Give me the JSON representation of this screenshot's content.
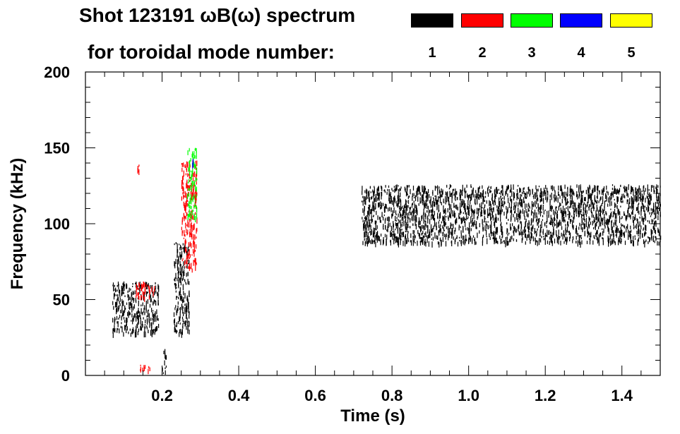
{
  "header": {
    "title_line1": "Shot 123191 ωB(ω) spectrum",
    "title_line2": "for toroidal mode number:"
  },
  "legend": [
    {
      "label": "1",
      "color": "#000000"
    },
    {
      "label": "2",
      "color": "#ff0000"
    },
    {
      "label": "3",
      "color": "#00ff00"
    },
    {
      "label": "4",
      "color": "#0000ff"
    },
    {
      "label": "5",
      "color": "#ffff00"
    }
  ],
  "chart_data": {
    "type": "heatmap",
    "title": "Shot 123191 ωB(ω) spectrum",
    "xlabel": "Time (s)",
    "ylabel": "Frequency (kHz)",
    "xlim": [
      0.0,
      1.5
    ],
    "ylim": [
      0,
      200
    ],
    "x_ticks": [
      "0.2",
      "0.4",
      "0.6",
      "0.8",
      "1.0",
      "1.2",
      "1.4"
    ],
    "x_tick_values": [
      0.2,
      0.4,
      0.6,
      0.8,
      1.0,
      1.2,
      1.4
    ],
    "y_ticks": [
      "0",
      "50",
      "100",
      "150",
      "200"
    ],
    "y_tick_values": [
      0,
      50,
      100,
      150,
      200
    ],
    "grid": false,
    "series": [
      {
        "name": "1",
        "color": "#000000",
        "regions": [
          {
            "t0": 0.07,
            "t1": 0.19,
            "f0": 28,
            "f1": 62
          },
          {
            "t0": 0.23,
            "t1": 0.27,
            "f0": 28,
            "f1": 88
          },
          {
            "t0": 0.2,
            "t1": 0.21,
            "f0": 2,
            "f1": 18
          },
          {
            "t0": 0.72,
            "t1": 1.5,
            "f0": 88,
            "f1": 126
          }
        ]
      },
      {
        "name": "2",
        "color": "#ff0000",
        "regions": [
          {
            "t0": 0.13,
            "t1": 0.18,
            "f0": 52,
            "f1": 62
          },
          {
            "t0": 0.135,
            "t1": 0.14,
            "f0": 133,
            "f1": 139
          },
          {
            "t0": 0.14,
            "t1": 0.17,
            "f0": 3,
            "f1": 8
          },
          {
            "t0": 0.25,
            "t1": 0.29,
            "f0": 70,
            "f1": 142
          }
        ]
      },
      {
        "name": "3",
        "color": "#00ff00",
        "regions": [
          {
            "t0": 0.265,
            "t1": 0.29,
            "f0": 105,
            "f1": 150
          }
        ]
      },
      {
        "name": "4",
        "color": "#0000ff",
        "regions": [
          {
            "t0": 0.278,
            "t1": 0.283,
            "f0": 138,
            "f1": 143
          }
        ]
      },
      {
        "name": "5",
        "color": "#ffff00",
        "regions": []
      }
    ]
  }
}
